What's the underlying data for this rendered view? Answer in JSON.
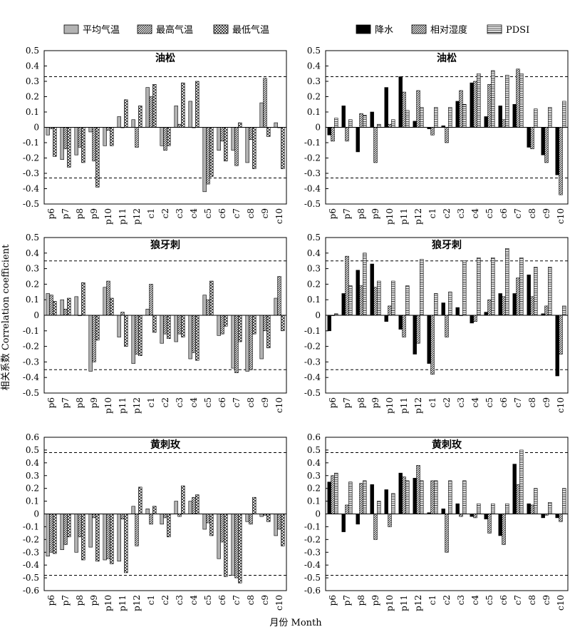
{
  "figure": {
    "y_label": "相关系数 Correlation coefficient",
    "x_label": "月份 Month",
    "legends": {
      "left": [
        {
          "label": "平均气温",
          "pattern": "solid-gray"
        },
        {
          "label": "最高气温",
          "pattern": "diagonal-hatch"
        },
        {
          "label": "最低气温",
          "pattern": "cross-hatch"
        }
      ],
      "right": [
        {
          "label": "降水",
          "pattern": "solid-black"
        },
        {
          "label": "相对湿度",
          "pattern": "diagonal-hatch"
        },
        {
          "label": "PDSI",
          "pattern": "horizontal-hatch"
        }
      ]
    },
    "colors": {
      "mean_temp": "#b3b3b3",
      "black": "#000000",
      "background": "#ffffff"
    }
  },
  "chart_data": [
    {
      "type": "bar",
      "title": "油松",
      "categories": [
        "p6",
        "p7",
        "p8",
        "p9",
        "p10",
        "p11",
        "p12",
        "c1",
        "c2",
        "c3",
        "c4",
        "c5",
        "c6",
        "c7",
        "c8",
        "c9",
        "c10"
      ],
      "ylim": [
        -0.5,
        0.5
      ],
      "yticks": [
        0.5,
        0.4,
        0.3,
        0.2,
        0.1,
        0,
        -0.1,
        -0.2,
        -0.3,
        -0.4,
        -0.5
      ],
      "significance_lines": [
        0.33,
        -0.33
      ],
      "series": [
        {
          "name": "平均气温",
          "values": [
            -0.05,
            -0.21,
            -0.18,
            -0.03,
            -0.12,
            0.07,
            0.05,
            0.26,
            -0.12,
            0.14,
            0.17,
            -0.42,
            -0.15,
            -0.15,
            -0.23,
            0.16,
            0.03
          ]
        },
        {
          "name": "最高气温",
          "values": [
            -0.01,
            -0.14,
            -0.13,
            -0.22,
            -0.02,
            0.0,
            -0.13,
            0.2,
            -0.15,
            0.02,
            0.0,
            -0.37,
            -0.09,
            -0.25,
            -0.08,
            0.32,
            0.0
          ]
        },
        {
          "name": "最低气温",
          "values": [
            -0.19,
            -0.26,
            -0.23,
            -0.39,
            -0.12,
            0.18,
            0.14,
            0.28,
            -0.12,
            0.29,
            0.3,
            -0.32,
            -0.22,
            0.03,
            -0.27,
            -0.06,
            -0.27
          ]
        }
      ]
    },
    {
      "type": "bar",
      "title": "油松",
      "categories": [
        "p6",
        "p7",
        "p8",
        "p9",
        "p10",
        "p11",
        "p12",
        "c1",
        "c2",
        "c3",
        "c4",
        "c5",
        "c6",
        "c7",
        "c8",
        "c9",
        "c10"
      ],
      "ylim": [
        -0.5,
        0.5
      ],
      "yticks": [
        0.5,
        0.4,
        0.3,
        0.2,
        0.1,
        0,
        -0.1,
        -0.2,
        -0.3,
        -0.4,
        -0.5
      ],
      "significance_lines": [
        0.33,
        -0.33
      ],
      "series": [
        {
          "name": "降水",
          "values": [
            -0.05,
            0.14,
            -0.16,
            0.1,
            0.26,
            0.33,
            0.04,
            -0.01,
            0.01,
            0.17,
            0.29,
            0.07,
            0.14,
            0.15,
            -0.13,
            -0.18,
            -0.31
          ]
        },
        {
          "name": "相对湿度",
          "values": [
            -0.09,
            -0.09,
            0.09,
            -0.23,
            0.02,
            0.23,
            0.24,
            -0.05,
            -0.1,
            0.24,
            0.3,
            0.28,
            0.05,
            0.38,
            -0.14,
            -0.23,
            -0.44
          ]
        },
        {
          "name": "PDSI",
          "values": [
            0.06,
            0.05,
            0.08,
            0.02,
            0.05,
            0.11,
            0.13,
            0.13,
            0.13,
            0.15,
            0.35,
            0.37,
            0.34,
            0.35,
            0.12,
            0.13,
            0.17
          ]
        }
      ]
    },
    {
      "type": "bar",
      "title": "狼牙刺",
      "categories": [
        "p6",
        "p7",
        "p8",
        "p9",
        "p10",
        "p11",
        "p12",
        "c1",
        "c2",
        "c3",
        "c4",
        "c5",
        "c6",
        "c7",
        "c8",
        "c9",
        "c10"
      ],
      "ylim": [
        -0.5,
        0.5
      ],
      "yticks": [
        0.5,
        0.4,
        0.3,
        0.2,
        0.1,
        0,
        -0.1,
        -0.2,
        -0.3,
        -0.4,
        -0.5
      ],
      "significance_lines": [
        0.35,
        -0.35
      ],
      "series": [
        {
          "name": "平均气温",
          "values": [
            0.14,
            0.1,
            0.12,
            -0.36,
            0.18,
            -0.14,
            -0.31,
            0.04,
            -0.18,
            -0.17,
            -0.28,
            0.13,
            -0.13,
            -0.34,
            -0.36,
            -0.28,
            0.11
          ]
        },
        {
          "name": "最高气温",
          "values": [
            0.13,
            0.04,
            0.0,
            -0.3,
            0.22,
            0.02,
            -0.25,
            0.2,
            -0.12,
            -0.12,
            -0.24,
            0.1,
            -0.12,
            -0.37,
            -0.35,
            -0.1,
            0.25
          ]
        },
        {
          "name": "最低气温",
          "values": [
            0.09,
            0.11,
            0.21,
            -0.16,
            0.11,
            -0.2,
            -0.26,
            -0.11,
            -0.15,
            -0.14,
            -0.29,
            0.22,
            -0.07,
            -0.17,
            -0.12,
            -0.21,
            -0.1
          ]
        }
      ]
    },
    {
      "type": "bar",
      "title": "狼牙刺",
      "categories": [
        "p6",
        "p7",
        "p8",
        "p9",
        "p10",
        "p11",
        "p12",
        "c1",
        "c2",
        "c3",
        "c4",
        "c5",
        "c6",
        "c7",
        "c8",
        "c9",
        "c10"
      ],
      "ylim": [
        -0.5,
        0.5
      ],
      "yticks": [
        0.5,
        0.4,
        0.3,
        0.2,
        0.1,
        0,
        -0.1,
        -0.2,
        -0.3,
        -0.4,
        -0.5
      ],
      "significance_lines": [
        0.35,
        -0.35
      ],
      "series": [
        {
          "name": "降水",
          "values": [
            -0.1,
            0.14,
            0.29,
            0.33,
            -0.04,
            -0.09,
            -0.25,
            -0.31,
            0.08,
            0.05,
            -0.05,
            0.02,
            0.14,
            0.14,
            0.26,
            0.01,
            -0.39
          ]
        },
        {
          "name": "相对湿度",
          "values": [
            0.0,
            0.38,
            0.19,
            0.18,
            0.06,
            -0.14,
            -0.18,
            -0.38,
            -0.14,
            0.0,
            -0.04,
            0.1,
            0.12,
            0.24,
            0.12,
            0.06,
            -0.25
          ]
        },
        {
          "name": "PDSI",
          "values": [
            0.01,
            0.19,
            0.4,
            0.22,
            0.22,
            0.19,
            0.36,
            0.14,
            0.15,
            0.35,
            0.37,
            0.37,
            0.43,
            0.37,
            0.31,
            0.31,
            0.06
          ]
        }
      ]
    },
    {
      "type": "bar",
      "title": "黄刺玫",
      "categories": [
        "p6",
        "p7",
        "p8",
        "p9",
        "p10",
        "p11",
        "p12",
        "c1",
        "c2",
        "c3",
        "c4",
        "c5",
        "c6",
        "c7",
        "c8",
        "c9",
        "c10"
      ],
      "ylim": [
        -0.6,
        0.6
      ],
      "yticks": [
        0.6,
        0.5,
        0.4,
        0.3,
        0.2,
        0.1,
        0,
        -0.1,
        -0.2,
        -0.3,
        -0.4,
        -0.5,
        -0.6
      ],
      "significance_lines": [
        0.48,
        -0.48
      ],
      "series": [
        {
          "name": "平均气温",
          "values": [
            -0.33,
            -0.28,
            -0.3,
            -0.26,
            -0.36,
            -0.37,
            0.06,
            0.04,
            -0.08,
            0.1,
            0.1,
            -0.12,
            -0.35,
            -0.48,
            -0.06,
            -0.02,
            -0.17
          ]
        },
        {
          "name": "最高气温",
          "values": [
            -0.3,
            -0.24,
            -0.18,
            -0.03,
            -0.35,
            -0.04,
            -0.25,
            -0.08,
            -0.03,
            -0.02,
            0.13,
            -0.07,
            -0.22,
            -0.5,
            -0.08,
            -0.01,
            -0.12
          ]
        },
        {
          "name": "最低气温",
          "values": [
            -0.31,
            -0.18,
            -0.36,
            -0.37,
            -0.39,
            -0.46,
            0.21,
            0.06,
            -0.18,
            0.22,
            0.15,
            -0.17,
            -0.49,
            -0.54,
            0.13,
            -0.06,
            -0.25
          ]
        }
      ]
    },
    {
      "type": "bar",
      "title": "黄刺玫",
      "categories": [
        "p6",
        "p7",
        "p8",
        "p9",
        "p10",
        "p11",
        "p12",
        "c1",
        "c2",
        "c3",
        "c4",
        "c5",
        "c6",
        "c7",
        "c8",
        "c9",
        "c10"
      ],
      "ylim": [
        -0.6,
        0.6
      ],
      "yticks": [
        0.6,
        0.5,
        0.4,
        0.3,
        0.2,
        0.1,
        0,
        -0.1,
        -0.2,
        -0.3,
        -0.4,
        -0.5,
        -0.6
      ],
      "significance_lines": [
        0.48,
        -0.48
      ],
      "series": [
        {
          "name": "降水",
          "values": [
            0.25,
            -0.14,
            -0.08,
            0.23,
            0.19,
            0.32,
            0.28,
            0.01,
            0.04,
            0.08,
            -0.02,
            -0.04,
            -0.17,
            0.39,
            0.08,
            -0.03,
            -0.03
          ]
        },
        {
          "name": "相对湿度",
          "values": [
            0.3,
            0.07,
            0.24,
            -0.2,
            -0.1,
            0.29,
            0.38,
            0.26,
            -0.3,
            -0.02,
            -0.03,
            -0.15,
            -0.24,
            0.23,
            0.07,
            -0.01,
            -0.06
          ]
        },
        {
          "name": "PDSI",
          "values": [
            0.32,
            0.25,
            0.26,
            0.1,
            0.16,
            0.26,
            0.26,
            0.26,
            0.26,
            0.26,
            0.08,
            0.08,
            0.08,
            0.5,
            0.2,
            0.09,
            0.2
          ]
        }
      ]
    }
  ]
}
